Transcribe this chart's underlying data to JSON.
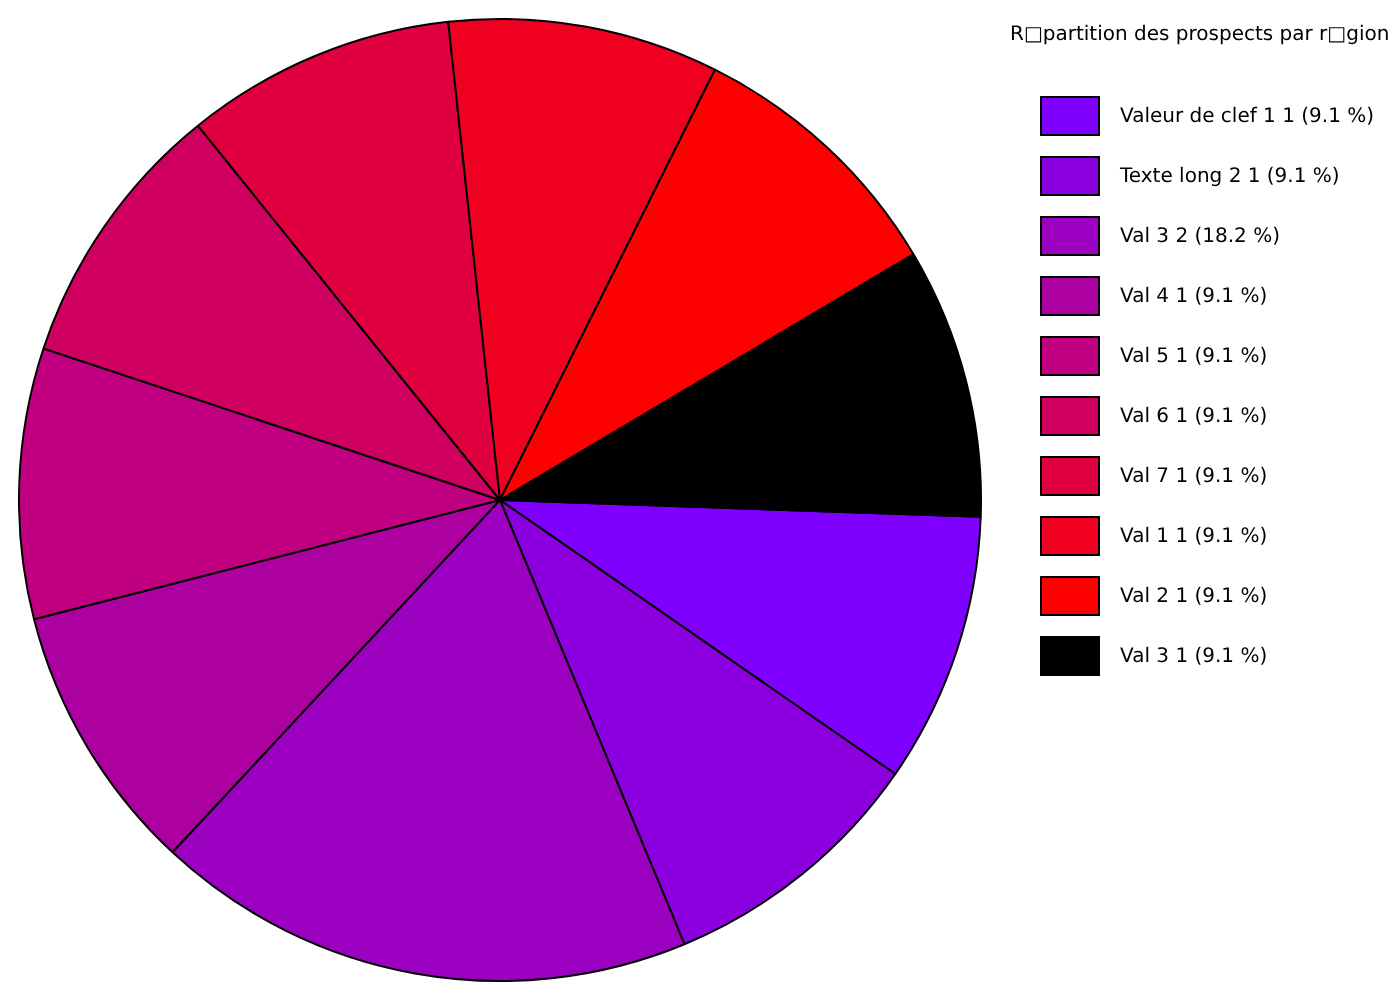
{
  "chart_data": {
    "type": "pie",
    "legend_title": "R□partition des prospects par r□gion",
    "categories": [
      "Valeur de clef 1 1 (9.1 %)",
      "Texte long 2 1 (9.1 %)",
      "Val 3 2 (18.2 %)",
      "Val 4 1 (9.1 %)",
      "Val 5 1 (9.1 %)",
      "Val 6 1 (9.1 %)",
      "Val 7 1 (9.1 %)",
      "Val 1 1 (9.1 %)",
      "Val 2 1 (9.1 %)",
      "Val 3 1 (9.1 %)"
    ],
    "values": [
      1,
      1,
      2,
      1,
      1,
      1,
      1,
      1,
      1,
      1
    ],
    "colors": [
      "#8000ff",
      "#8c00e0",
      "#9c00c0",
      "#ac00a0",
      "#c00080",
      "#d00060",
      "#e00040",
      "#f00020",
      "#ff0000",
      "#000000"
    ],
    "legend": "right"
  }
}
